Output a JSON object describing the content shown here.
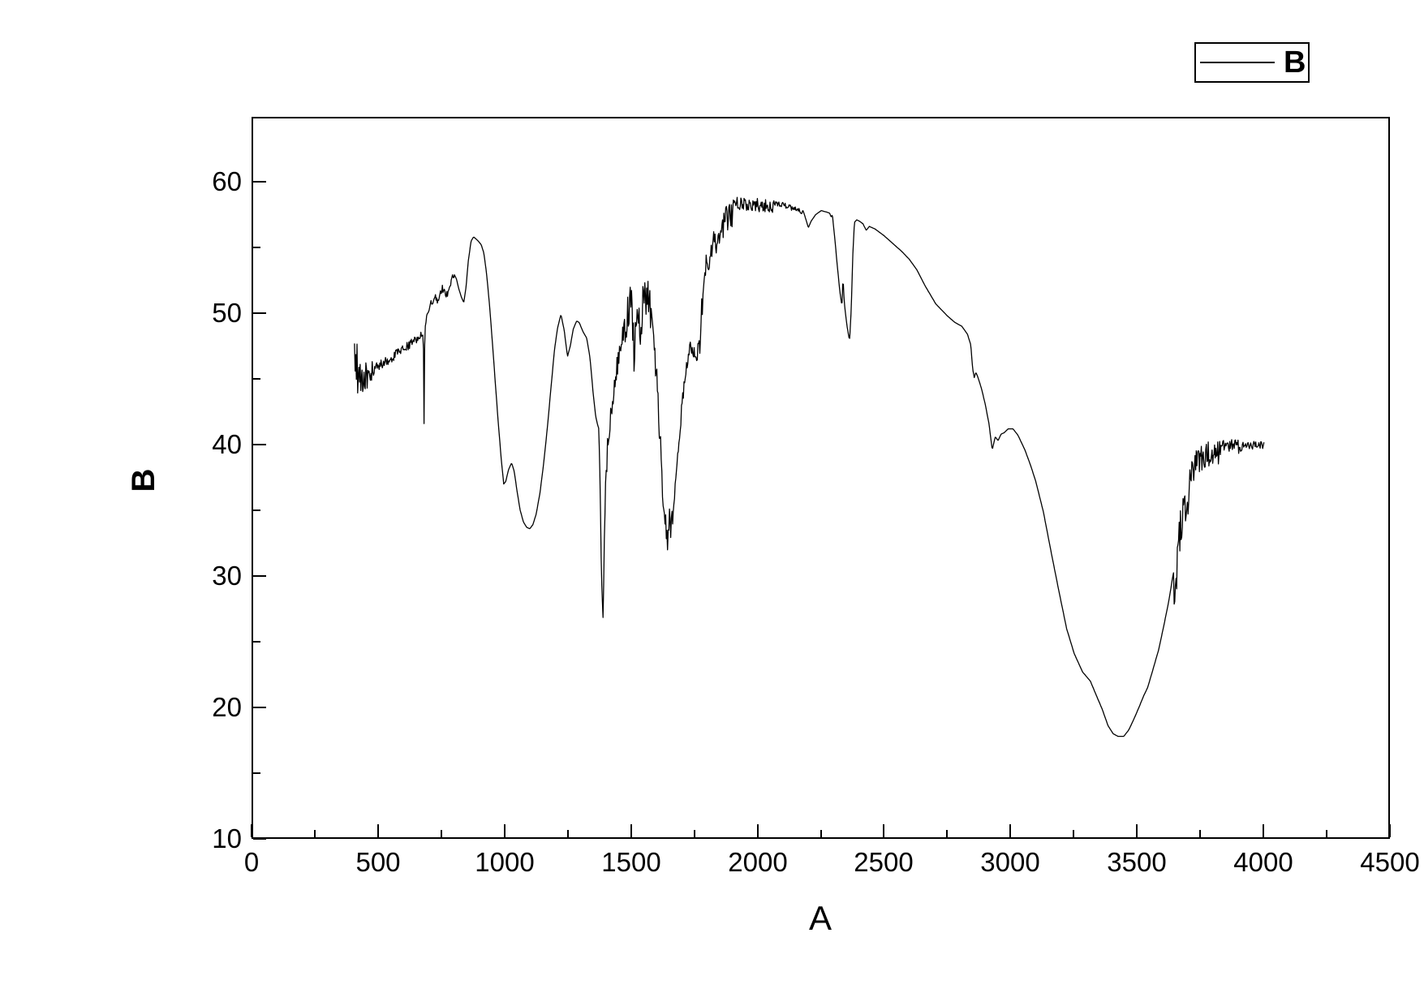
{
  "labels": {
    "x_title": "A",
    "y_title": "B",
    "legend": "B"
  },
  "chart_data": {
    "type": "line",
    "title": "",
    "xlabel": "A",
    "ylabel": "B",
    "xlim": [
      0,
      4500
    ],
    "ylim": [
      10,
      65
    ],
    "grid": false,
    "background": "#ffffff",
    "line_color": "#000000",
    "legend": {
      "label": "B",
      "position": "top-right-outside-box"
    },
    "x_major_ticks": [
      0,
      500,
      1000,
      1500,
      2000,
      2500,
      3000,
      3500,
      4000,
      4500
    ],
    "x_minor_ticks": [
      250,
      750,
      1250,
      1750,
      2250,
      2750,
      3250,
      3750,
      4250
    ],
    "y_major_ticks": [
      10,
      20,
      30,
      40,
      50,
      60
    ],
    "y_minor_ticks": [
      15,
      25,
      35,
      45,
      55
    ],
    "series": [
      {
        "name": "B",
        "points": [
          [
            407,
            48.5
          ],
          [
            409,
            44.3
          ],
          [
            411,
            48.9
          ],
          [
            414,
            45.0
          ],
          [
            417,
            47.8
          ],
          [
            420,
            44.1
          ],
          [
            423,
            46.8
          ],
          [
            426,
            44.0
          ],
          [
            429,
            46.3
          ],
          [
            432,
            43.9
          ],
          [
            436,
            46.0
          ],
          [
            440,
            44.5
          ],
          [
            444,
            45.9
          ],
          [
            448,
            44.2
          ],
          [
            452,
            45.7
          ],
          [
            456,
            44.7
          ],
          [
            460,
            45.9
          ],
          [
            464,
            44.9
          ],
          [
            468,
            45.6
          ],
          [
            473,
            45.1
          ],
          [
            478,
            45.6
          ],
          [
            490,
            45.9
          ],
          [
            510,
            46.1
          ],
          [
            530,
            46.3
          ],
          [
            560,
            46.7
          ],
          [
            590,
            47.1
          ],
          [
            620,
            47.5
          ],
          [
            650,
            48.0
          ],
          [
            668,
            48.2
          ],
          [
            676,
            48.3
          ],
          [
            679,
            48.4
          ],
          [
            682,
            41.6
          ],
          [
            685,
            48.8
          ],
          [
            695,
            49.9
          ],
          [
            705,
            50.5
          ],
          [
            716,
            51.0
          ],
          [
            726,
            51.3
          ],
          [
            736,
            51.0
          ],
          [
            746,
            51.5
          ],
          [
            755,
            51.9
          ],
          [
            763,
            51.5
          ],
          [
            771,
            51.3
          ],
          [
            780,
            51.8
          ],
          [
            790,
            52.4
          ],
          [
            800,
            53.0
          ],
          [
            810,
            52.6
          ],
          [
            820,
            51.8
          ],
          [
            830,
            51.2
          ],
          [
            839,
            50.8
          ],
          [
            848,
            52.0
          ],
          [
            857,
            54.0
          ],
          [
            868,
            55.5
          ],
          [
            878,
            55.8
          ],
          [
            890,
            55.6
          ],
          [
            900,
            55.4
          ],
          [
            908,
            55.2
          ],
          [
            918,
            54.6
          ],
          [
            928,
            53.2
          ],
          [
            940,
            50.8
          ],
          [
            952,
            47.8
          ],
          [
            964,
            44.6
          ],
          [
            976,
            41.5
          ],
          [
            988,
            38.7
          ],
          [
            997,
            37.0
          ],
          [
            1005,
            37.2
          ],
          [
            1016,
            38.1
          ],
          [
            1028,
            38.6
          ],
          [
            1038,
            38.0
          ],
          [
            1050,
            36.4
          ],
          [
            1062,
            35.0
          ],
          [
            1075,
            34.1
          ],
          [
            1088,
            33.7
          ],
          [
            1100,
            33.6
          ],
          [
            1112,
            33.9
          ],
          [
            1125,
            34.7
          ],
          [
            1140,
            36.3
          ],
          [
            1155,
            38.6
          ],
          [
            1170,
            41.4
          ],
          [
            1185,
            44.6
          ],
          [
            1198,
            47.3
          ],
          [
            1210,
            48.9
          ],
          [
            1223,
            49.9
          ],
          [
            1236,
            48.7
          ],
          [
            1249,
            46.7
          ],
          [
            1260,
            47.5
          ],
          [
            1272,
            48.8
          ],
          [
            1285,
            49.4
          ],
          [
            1295,
            49.3
          ],
          [
            1310,
            48.6
          ],
          [
            1325,
            48.1
          ],
          [
            1338,
            46.6
          ],
          [
            1350,
            44.0
          ],
          [
            1360,
            42.2
          ],
          [
            1368,
            41.5
          ],
          [
            1373,
            41.2
          ],
          [
            1378,
            37.0
          ],
          [
            1383,
            30.0
          ],
          [
            1390,
            26.6
          ],
          [
            1395,
            33.5
          ],
          [
            1400,
            37.0
          ],
          [
            1406,
            39.5
          ],
          [
            1414,
            41.5
          ],
          [
            1424,
            43.3
          ],
          [
            1436,
            45.0
          ],
          [
            1450,
            46.6
          ],
          [
            1462,
            47.8
          ],
          [
            1475,
            49.6
          ],
          [
            1488,
            51.0
          ],
          [
            1500,
            52.0
          ],
          [
            1507,
            50.0
          ],
          [
            1513,
            47.2
          ],
          [
            1520,
            49.8
          ],
          [
            1528,
            50.9
          ],
          [
            1536,
            49.2
          ],
          [
            1544,
            51.0
          ],
          [
            1552,
            52.2
          ],
          [
            1561,
            52.1
          ],
          [
            1570,
            51.6
          ],
          [
            1580,
            50.3
          ],
          [
            1592,
            47.8
          ],
          [
            1604,
            44.5
          ],
          [
            1616,
            40.5
          ],
          [
            1627,
            36.5
          ],
          [
            1637,
            34.0
          ],
          [
            1646,
            33.2
          ],
          [
            1653,
            34.8
          ],
          [
            1658,
            33.6
          ],
          [
            1665,
            35.3
          ],
          [
            1673,
            36.6
          ],
          [
            1686,
            39.3
          ],
          [
            1700,
            42.8
          ],
          [
            1716,
            45.7
          ],
          [
            1733,
            47.7
          ],
          [
            1747,
            47.1
          ],
          [
            1761,
            46.9
          ],
          [
            1772,
            48.2
          ],
          [
            1786,
            53.2
          ],
          [
            1800,
            54.6
          ],
          [
            1814,
            55.4
          ],
          [
            1830,
            56.2
          ],
          [
            1845,
            56.8
          ],
          [
            1862,
            57.6
          ],
          [
            1882,
            58.2
          ],
          [
            1902,
            58.5
          ],
          [
            1922,
            58.7
          ],
          [
            1950,
            58.6
          ],
          [
            1980,
            58.6
          ],
          [
            2010,
            58.5
          ],
          [
            2045,
            58.5
          ],
          [
            2080,
            58.4
          ],
          [
            2120,
            58.2
          ],
          [
            2155,
            57.9
          ],
          [
            2182,
            57.7
          ],
          [
            2192,
            57.1
          ],
          [
            2201,
            56.5
          ],
          [
            2212,
            57.0
          ],
          [
            2230,
            57.5
          ],
          [
            2252,
            57.8
          ],
          [
            2272,
            57.7
          ],
          [
            2286,
            57.6
          ],
          [
            2291,
            57.3
          ],
          [
            2296,
            57.5
          ],
          [
            2305,
            55.8
          ],
          [
            2316,
            53.5
          ],
          [
            2326,
            51.6
          ],
          [
            2334,
            50.5
          ],
          [
            2338,
            52.8
          ],
          [
            2343,
            50.8
          ],
          [
            2354,
            49.0
          ],
          [
            2364,
            47.9
          ],
          [
            2371,
            50.5
          ],
          [
            2377,
            54.5
          ],
          [
            2383,
            56.9
          ],
          [
            2392,
            57.1
          ],
          [
            2403,
            57.0
          ],
          [
            2417,
            56.8
          ],
          [
            2430,
            56.3
          ],
          [
            2442,
            56.6
          ],
          [
            2465,
            56.4
          ],
          [
            2500,
            55.9
          ],
          [
            2535,
            55.3
          ],
          [
            2570,
            54.7
          ],
          [
            2600,
            54.1
          ],
          [
            2630,
            53.3
          ],
          [
            2662,
            52.1
          ],
          [
            2705,
            50.7
          ],
          [
            2750,
            49.8
          ],
          [
            2780,
            49.3
          ],
          [
            2808,
            49.0
          ],
          [
            2830,
            48.4
          ],
          [
            2843,
            47.6
          ],
          [
            2851,
            45.7
          ],
          [
            2857,
            45.1
          ],
          [
            2863,
            45.5
          ],
          [
            2870,
            45.2
          ],
          [
            2885,
            44.3
          ],
          [
            2900,
            43.1
          ],
          [
            2915,
            41.6
          ],
          [
            2928,
            39.6
          ],
          [
            2940,
            40.6
          ],
          [
            2951,
            40.3
          ],
          [
            2963,
            40.8
          ],
          [
            2975,
            40.9
          ],
          [
            2991,
            41.2
          ],
          [
            3010,
            41.2
          ],
          [
            3030,
            40.7
          ],
          [
            3057,
            39.6
          ],
          [
            3080,
            38.4
          ],
          [
            3100,
            37.2
          ],
          [
            3130,
            34.9
          ],
          [
            3160,
            31.9
          ],
          [
            3192,
            28.8
          ],
          [
            3222,
            26.0
          ],
          [
            3252,
            24.1
          ],
          [
            3285,
            22.7
          ],
          [
            3316,
            22.0
          ],
          [
            3342,
            20.8
          ],
          [
            3362,
            19.9
          ],
          [
            3386,
            18.6
          ],
          [
            3406,
            18.0
          ],
          [
            3425,
            17.8
          ],
          [
            3448,
            17.8
          ],
          [
            3468,
            18.3
          ],
          [
            3490,
            19.2
          ],
          [
            3510,
            20.1
          ],
          [
            3527,
            20.9
          ],
          [
            3542,
            21.5
          ],
          [
            3562,
            22.8
          ],
          [
            3586,
            24.4
          ],
          [
            3606,
            26.2
          ],
          [
            3626,
            28.1
          ],
          [
            3641,
            29.9
          ],
          [
            3653,
            31.1
          ],
          [
            3663,
            33.0
          ],
          [
            3670,
            34.6
          ],
          [
            3681,
            36.1
          ],
          [
            3691,
            36.9
          ],
          [
            3702,
            37.2
          ],
          [
            3714,
            38.1
          ],
          [
            3727,
            38.9
          ],
          [
            3742,
            39.3
          ],
          [
            3762,
            39.6
          ],
          [
            3792,
            39.8
          ],
          [
            3822,
            39.9
          ],
          [
            3852,
            40.0
          ],
          [
            3900,
            40.0
          ],
          [
            3952,
            40.0
          ],
          [
            4003,
            40.0
          ]
        ],
        "noise_zones": [
          [
            407,
            482,
            0.9,
            0
          ],
          [
            482,
            670,
            0.35,
            0
          ],
          [
            690,
            800,
            0.3,
            0
          ],
          [
            1395,
            1470,
            0.9,
            -0.2
          ],
          [
            1475,
            1578,
            1.5,
            -0.5
          ],
          [
            1590,
            1675,
            1.1,
            -0.3
          ],
          [
            1680,
            1768,
            0.5,
            -0.2
          ],
          [
            1772,
            1905,
            1.1,
            -0.8
          ],
          [
            1905,
            2060,
            0.5,
            -0.6
          ],
          [
            2060,
            2180,
            0.2,
            -0.3
          ],
          [
            3645,
            3705,
            1.9,
            -0.5
          ],
          [
            3705,
            3825,
            1.0,
            -0.5
          ],
          [
            3825,
            3935,
            0.55,
            -0.3
          ],
          [
            3935,
            4003,
            0.3,
            -0.2
          ]
        ]
      }
    ]
  }
}
